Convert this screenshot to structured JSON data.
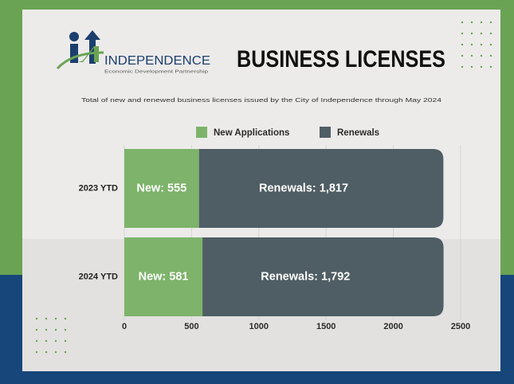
{
  "logo": {
    "name": "INDEPENDENCE",
    "tagline": "Economic Development Partnership"
  },
  "chart_data": {
    "type": "bar",
    "orientation": "horizontal",
    "stacked": true,
    "title": "BUSINESS LICENSES",
    "subtitle": "Total of new and renewed business licenses issued by the City of Independence through May 2024",
    "categories": [
      "2023 YTD",
      "2024 YTD"
    ],
    "series": [
      {
        "name": "New Applications",
        "color": "#7db36a",
        "values": [
          555,
          581
        ],
        "value_labels": [
          "New: 555",
          "New: 581"
        ]
      },
      {
        "name": "Renewals",
        "color": "#4f5e64",
        "values": [
          1817,
          1792
        ],
        "value_labels": [
          "Renewals: 1,817",
          "Renewals: 1,792"
        ]
      }
    ],
    "xlim": [
      0,
      2500
    ],
    "xticks": [
      0,
      500,
      1000,
      1500,
      2000,
      2500
    ],
    "legend": "top"
  }
}
